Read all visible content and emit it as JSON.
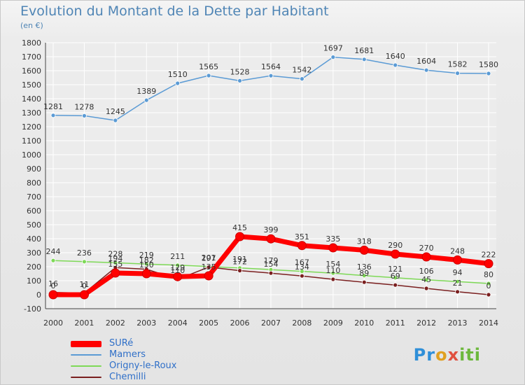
{
  "title": "Evolution du Montant de la Dette par Habitant",
  "unit": "(en €)",
  "brand": "Proxiti",
  "chart_data": {
    "type": "line",
    "x": [
      "2000",
      "2001",
      "2002",
      "2003",
      "2004",
      "2005",
      "2006",
      "2007",
      "2008",
      "2009",
      "2010",
      "2011",
      "2012",
      "2013",
      "2014"
    ],
    "ylim": [
      -100,
      1800
    ],
    "yticks": [
      -100,
      0,
      100,
      200,
      300,
      400,
      500,
      600,
      700,
      800,
      900,
      1000,
      1100,
      1200,
      1300,
      1400,
      1500,
      1600,
      1700,
      1800
    ],
    "grid": true,
    "legend_position": "bottom-left",
    "series": [
      {
        "name": "SURé",
        "color": "#ff0000",
        "values": [
          0,
          0,
          155,
          150,
          129,
          135,
          415,
          399,
          351,
          335,
          318,
          290,
          270,
          248,
          222
        ],
        "labels": [
          "0",
          "0",
          "155",
          "150",
          "129",
          "135",
          "415",
          "399",
          "351",
          "335",
          "318",
          "290",
          "270",
          "248",
          "222"
        ]
      },
      {
        "name": "Mamers",
        "color": "#5b9bd5",
        "values": [
          1281,
          1278,
          1245,
          1389,
          1510,
          1565,
          1528,
          1564,
          1542,
          1697,
          1681,
          1640,
          1604,
          1582,
          1580
        ],
        "labels": [
          "1281",
          "1278",
          "1245",
          "1389",
          "1510",
          "1565",
          "1528",
          "1564",
          "1542",
          "1697",
          "1681",
          "1640",
          "1604",
          "1582",
          "1580"
        ]
      },
      {
        "name": "Origny-le-Roux",
        "color": "#7ed957",
        "values": [
          244,
          236,
          228,
          219,
          211,
          201,
          191,
          179,
          167,
          154,
          136,
          121,
          106,
          94,
          80
        ],
        "labels": [
          "244",
          "236",
          "228",
          "219",
          "211",
          "201",
          "191",
          "179",
          "167",
          "154",
          "136",
          "121",
          "106",
          "94",
          "80"
        ]
      },
      {
        "name": "Chemilli",
        "color": "#7a1f1f",
        "values": [
          16,
          11,
          194,
          182,
          110,
          197,
          172,
          154,
          134,
          110,
          89,
          69,
          45,
          21,
          0
        ],
        "labels": [
          "16",
          "11",
          "194",
          "182",
          "110",
          "197",
          "172",
          "154",
          "134",
          "110",
          "89",
          "69",
          "45",
          "21",
          "0"
        ]
      }
    ]
  }
}
